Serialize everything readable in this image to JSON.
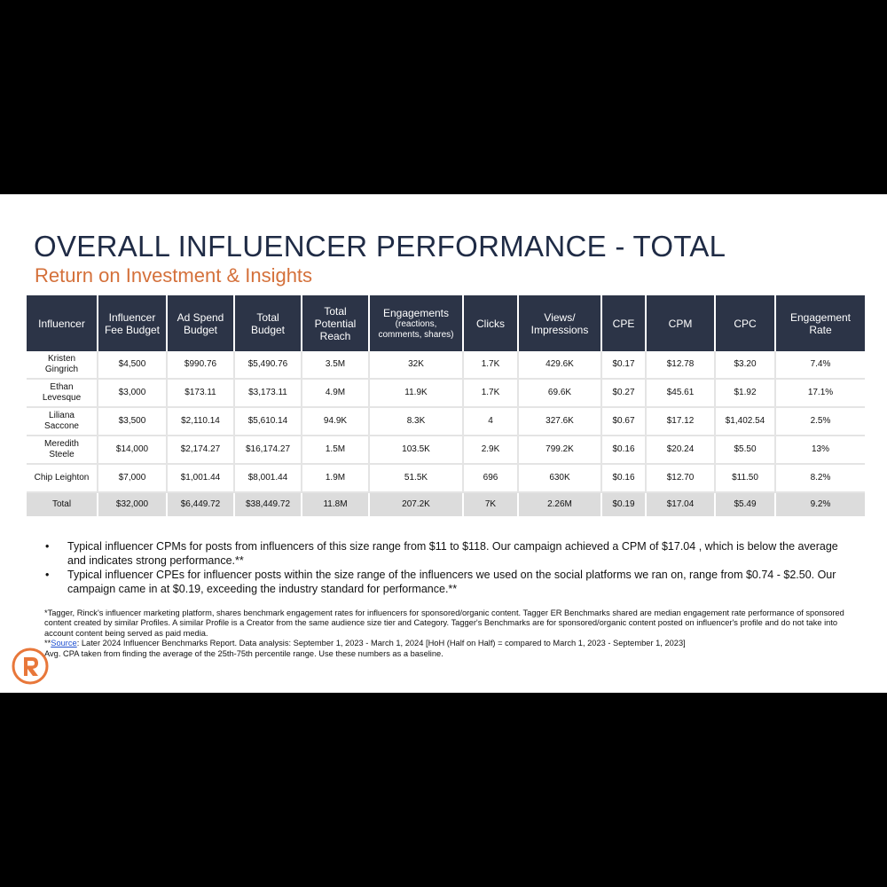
{
  "slide": {
    "title": "OVERALL INFLUENCER PERFORMANCE - TOTAL",
    "subtitle": "Return on Investment & Insights"
  },
  "table": {
    "headers": [
      {
        "line1": "Influencer",
        "line2": ""
      },
      {
        "line1": "Influencer",
        "line2": "Fee Budget"
      },
      {
        "line1": "Ad Spend",
        "line2": "Budget"
      },
      {
        "line1": "Total",
        "line2": "Budget"
      },
      {
        "line1": "Total",
        "line2": "Potential",
        "line3": "Reach"
      },
      {
        "line1": "Engagements",
        "small": "(reactions,",
        "small2": "comments, shares)"
      },
      {
        "line1": "Clicks",
        "line2": ""
      },
      {
        "line1": "Views/",
        "line2": "Impressions"
      },
      {
        "line1": "CPE",
        "line2": ""
      },
      {
        "line1": "CPM",
        "line2": ""
      },
      {
        "line1": "CPC",
        "line2": ""
      },
      {
        "line1": "Engagement",
        "line2": "Rate"
      }
    ],
    "rows": [
      {
        "name1": "Kristen",
        "name2": "Gingrich",
        "cells": [
          "$4,500",
          "$990.76",
          "$5,490.76",
          "3.5M",
          "32K",
          "1.7K",
          "429.6K",
          "$0.17",
          "$12.78",
          "$3.20",
          "7.4%"
        ]
      },
      {
        "name1": "Ethan",
        "name2": "Levesque",
        "cells": [
          "$3,000",
          "$173.11",
          "$3,173.11",
          "4.9M",
          "11.9K",
          "1.7K",
          "69.6K",
          "$0.27",
          "$45.61",
          "$1.92",
          "17.1%"
        ]
      },
      {
        "name1": "Liliana",
        "name2": "Saccone",
        "cells": [
          "$3,500",
          "$2,110.14",
          "$5,610.14",
          "94.9K",
          "8.3K",
          "4",
          "327.6K",
          "$0.67",
          "$17.12",
          "$1,402.54",
          "2.5%"
        ]
      },
      {
        "name1": "Meredith",
        "name2": "Steele",
        "cells": [
          "$14,000",
          "$2,174.27",
          "$16,174.27",
          "1.5M",
          "103.5K",
          "2.9K",
          "799.2K",
          "$0.16",
          "$20.24",
          "$5.50",
          "13%"
        ]
      },
      {
        "name1": "Chip Leighton",
        "name2": "",
        "cells": [
          "$7,000",
          "$1,001.44",
          "$8,001.44",
          "1.9M",
          "51.5K",
          "696",
          "630K",
          "$0.16",
          "$12.70",
          "$11.50",
          "8.2%"
        ]
      }
    ],
    "total": {
      "label": "Total",
      "cells": [
        "$32,000",
        "$6,449.72",
        "$38,449.72",
        "11.8M",
        "207.2K",
        "7K",
        "2.26M",
        "$0.19",
        "$17.04",
        "$5.49",
        "9.2%"
      ]
    }
  },
  "bullets": [
    "Typical influencer CPMs for posts from influencers of this size range from $11 to $118. Our campaign achieved a CPM of $17.04 , which is below the average and indicates strong performance.**",
    "Typical influencer CPEs for influencer posts within the size range of the influencers we used on the social platforms we ran on, range from $0.74 - $2.50. Our campaign came in at $0.19, exceeding the industry standard for performance.**"
  ],
  "bullet_marker": "•",
  "footnotes": {
    "tagger": "*Tagger, Rinck's influencer marketing platform, shares benchmark engagement rates for influencers for sponsored/organic content. Tagger ER Benchmarks shared are median engagement rate performance of sponsored content created by similar Profiles. A similar Profile is a Creator from the same audience size tier and Category. Tagger's Benchmarks are for sponsored/organic content posted on influencer's profile and do not take into account content being served as paid media.",
    "source_prefix": "**",
    "source_link": "Source",
    "source_text": ": Later 2024 Influencer Benchmarks Report. Data analysis: September 1, 2023 - March 1, 2024 [HoH (Half on Half) = compared to March 1, 2023 - September 1, 2023]",
    "cpa": "Avg. CPA taken from finding the average of the 25th-75th percentile range. Use these numbers as a baseline."
  },
  "colors": {
    "title": "#1f2b45",
    "subtitle": "#d4703a",
    "header_bg": "#2c3447",
    "total_bg": "#dcdcdc",
    "logo": "#e8773a"
  },
  "logo_icon": "rinck-logo"
}
